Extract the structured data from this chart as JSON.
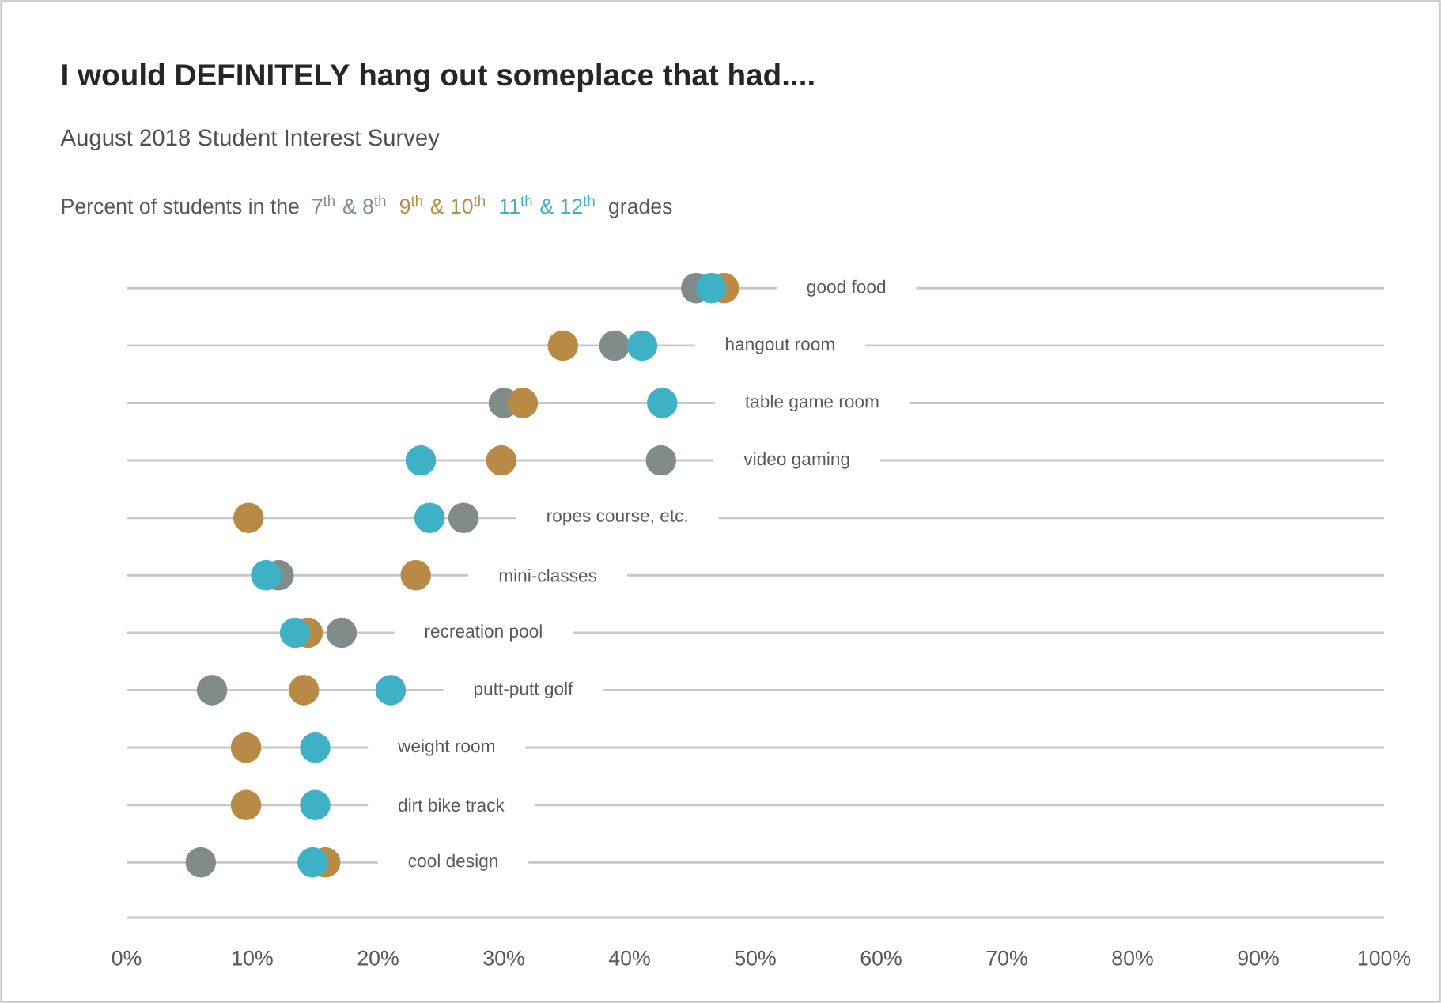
{
  "chart_data": {
    "type": "scatter",
    "title": "I would DEFINITELY  hang out someplace that had....",
    "subtitle": "August 2018 Student Interest Survey",
    "legend_title": "Percent of students in the",
    "annotations": [
      "grades"
    ],
    "orientation": "horizontal",
    "categories": [
      "good food",
      "hangout room",
      "table game room",
      "video gaming",
      "ropes course, etc.",
      "mini-classes",
      "recreation pool",
      "putt-putt golf",
      "weight room",
      "dirt bike track",
      "cool design"
    ],
    "series": [
      {
        "name": "7$^{th}$ & 8$^{th}$",
        "color": "#7f8c89",
        "values": [
          45.3,
          38.8,
          30,
          42.5,
          26.8,
          12.1,
          17.1,
          6.8,
          null,
          null,
          5.9
        ]
      },
      {
        "name": "9$^{th}$ & 10$^{th}$",
        "color": "#b98a45",
        "values": [
          47.5,
          34.7,
          31.5,
          29.8,
          9.7,
          23,
          14.4,
          14.1,
          9.5,
          9.5,
          15.8
        ]
      },
      {
        "name": "11$^{th}$ & 12$^{th}$",
        "color": "#3fb1c7",
        "values": [
          46.5,
          41,
          42.6,
          23.4,
          24.1,
          11.1,
          13.4,
          21,
          15,
          15,
          14.8
        ]
      }
    ],
    "xlim": [
      0,
      100
    ],
    "xticks": [
      {
        "value": 0,
        "label": "0%"
      },
      {
        "value": 10,
        "label": "10%"
      },
      {
        "value": 20,
        "label": "20%"
      },
      {
        "value": 30,
        "label": "30%"
      },
      {
        "value": 40,
        "label": "40%"
      },
      {
        "value": 50,
        "label": "50%"
      },
      {
        "value": 60,
        "label": "60%"
      },
      {
        "value": 70,
        "label": "70%"
      },
      {
        "value": 80,
        "label": "80%"
      },
      {
        "value": 90,
        "label": "90%"
      },
      {
        "value": 100,
        "label": "100%"
      }
    ],
    "grid": "y",
    "legend": "top",
    "marker": "circle"
  }
}
